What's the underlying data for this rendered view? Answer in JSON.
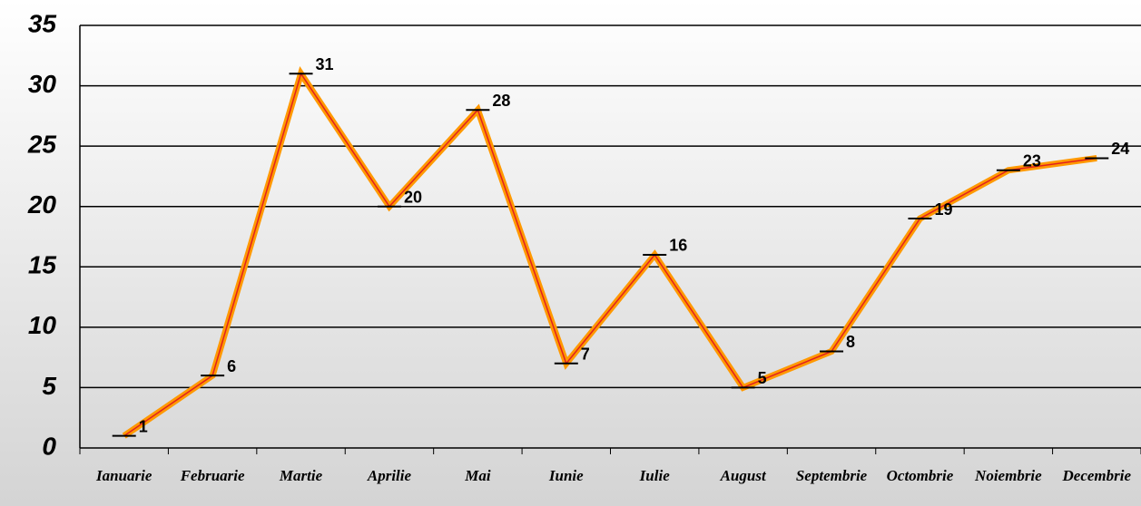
{
  "chart_data": {
    "type": "line",
    "categories": [
      "Ianuarie",
      "Februarie",
      "Martie",
      "Aprilie",
      "Mai",
      "Iunie",
      "Iulie",
      "August",
      "Septembrie",
      "Octombrie",
      "Noiembrie",
      "Decembrie"
    ],
    "values": [
      1,
      6,
      31,
      20,
      28,
      7,
      16,
      5,
      8,
      19,
      23,
      24
    ],
    "color": "#ff9900",
    "ylim": [
      0,
      35
    ],
    "yticks": [
      0,
      5,
      10,
      15,
      20,
      25,
      30,
      35
    ],
    "grid": true
  }
}
